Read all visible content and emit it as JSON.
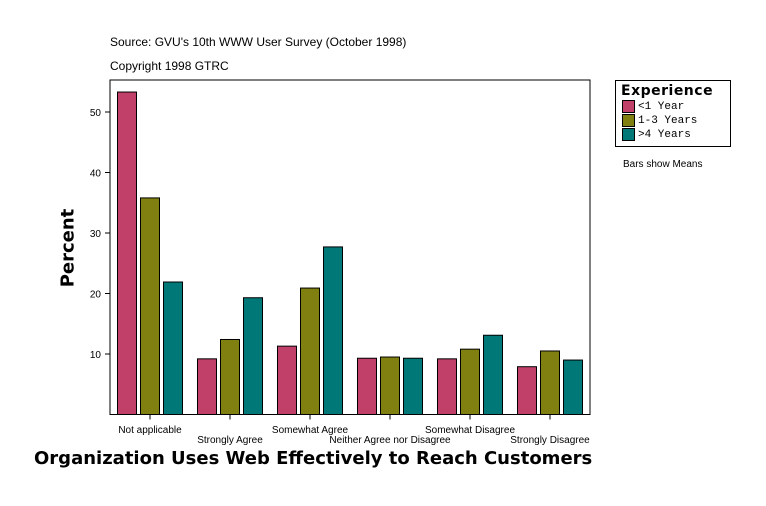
{
  "header": {
    "source": "Source: GVU's 10th WWW User Survey (October 1998)",
    "copyright": "Copyright 1998 GTRC"
  },
  "note": "Bars show Means",
  "chart_data": {
    "type": "bar",
    "title": "",
    "xlabel": "Organization Uses Web Effectively to Reach Customers",
    "ylabel": "Percent",
    "ylim": [
      0,
      55
    ],
    "yticks": [
      10,
      20,
      30,
      40,
      50
    ],
    "grid": false,
    "legend_title": "Experience",
    "legend_placement": "right",
    "categories": [
      "Not applicable",
      "Strongly Agree",
      "Somewhat Agree",
      "Neither Agree nor Disagree",
      "Somewhat Disagree",
      "Strongly Disagree"
    ],
    "series": [
      {
        "name": "<1 Year",
        "color": "#c0406a",
        "values": [
          53.3,
          9.2,
          11.3,
          9.3,
          9.2,
          7.9
        ]
      },
      {
        "name": "1-3 Years",
        "color": "#808010",
        "values": [
          35.8,
          12.4,
          20.9,
          9.5,
          10.8,
          10.5
        ]
      },
      {
        "name": ">4 Years",
        "color": "#007878",
        "values": [
          21.9,
          19.3,
          27.7,
          9.3,
          13.1,
          9.0
        ]
      }
    ]
  }
}
